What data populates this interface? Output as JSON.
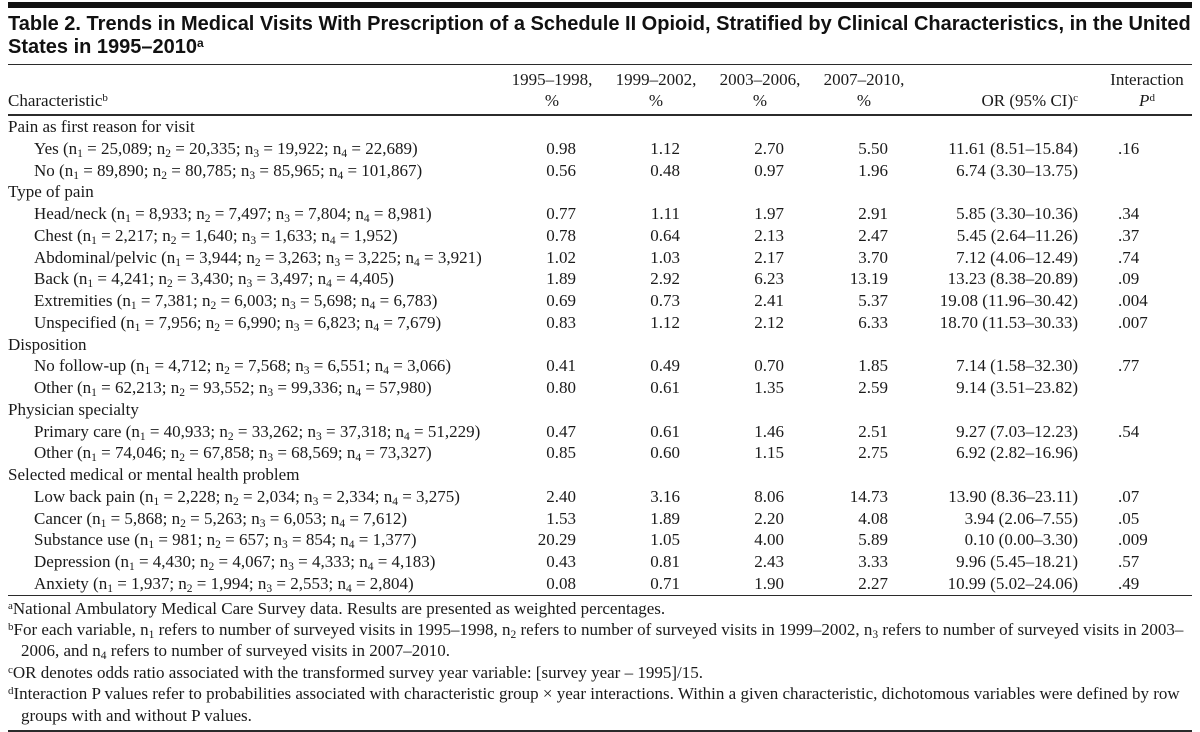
{
  "title": {
    "text": "Table 2. Trends in Medical Visits With Prescription of a Schedule II Opioid, Stratified by Clinical Characteristics, in the United States in 1995–2010",
    "sup": "a"
  },
  "table": {
    "columns": [
      {
        "label": "Characteristic",
        "sup": "b"
      },
      {
        "line1": "1995–1998,",
        "line2": "%"
      },
      {
        "line1": "1999–2002,",
        "line2": "%"
      },
      {
        "line1": "2003–2006,",
        "line2": "%"
      },
      {
        "line1": "2007–2010,",
        "line2": "%"
      },
      {
        "label": "OR (95% CI)",
        "sup": "c"
      },
      {
        "line1": "Interaction",
        "line2": "P",
        "sup": "d"
      }
    ],
    "rows": [
      {
        "type": "group",
        "label": "Pain as first reason for visit"
      },
      {
        "type": "item",
        "label": "Yes (n₁ = 25,089; n₂ = 20,335; n₃ = 19,922; n₄ = 22,689)",
        "values": [
          "0.98",
          "1.12",
          "2.70",
          "5.50"
        ],
        "or": "11.61 (8.51–15.84)",
        "p": ".16"
      },
      {
        "type": "item",
        "label": "No (n₁ = 89,890; n₂ = 80,785; n₃ = 85,965; n₄ = 101,867)",
        "values": [
          "0.56",
          "0.48",
          "0.97",
          "1.96"
        ],
        "or": "6.74 (3.30–13.75)",
        "p": ""
      },
      {
        "type": "group",
        "label": "Type of pain"
      },
      {
        "type": "item",
        "label": "Head/neck (n₁ = 8,933; n₂ = 7,497; n₃ = 7,804; n₄ = 8,981)",
        "values": [
          "0.77",
          "1.11",
          "1.97",
          "2.91"
        ],
        "or": "5.85 (3.30–10.36)",
        "p": ".34"
      },
      {
        "type": "item",
        "label": "Chest (n₁ = 2,217; n₂ = 1,640; n₃ = 1,633; n₄ = 1,952)",
        "values": [
          "0.78",
          "0.64",
          "2.13",
          "2.47"
        ],
        "or": "5.45 (2.64–11.26)",
        "p": ".37"
      },
      {
        "type": "item",
        "label": "Abdominal/pelvic (n₁ = 3,944; n₂ = 3,263; n₃ = 3,225; n₄ = 3,921)",
        "values": [
          "1.02",
          "1.03",
          "2.17",
          "3.70"
        ],
        "or": "7.12 (4.06–12.49)",
        "p": ".74"
      },
      {
        "type": "item",
        "label": "Back (n₁ = 4,241; n₂ = 3,430; n₃ = 3,497; n₄ = 4,405)",
        "values": [
          "1.89",
          "2.92",
          "6.23",
          "13.19"
        ],
        "or": "13.23 (8.38–20.89)",
        "p": ".09"
      },
      {
        "type": "item",
        "label": "Extremities (n₁ = 7,381; n₂ = 6,003; n₃ = 5,698; n₄ = 6,783)",
        "values": [
          "0.69",
          "0.73",
          "2.41",
          "5.37"
        ],
        "or": "19.08 (11.96–30.42)",
        "p": ".004"
      },
      {
        "type": "item",
        "label": "Unspecified (n₁ = 7,956; n₂ = 6,990; n₃ = 6,823; n₄ = 7,679)",
        "values": [
          "0.83",
          "1.12",
          "2.12",
          "6.33"
        ],
        "or": "18.70 (11.53–30.33)",
        "p": ".007"
      },
      {
        "type": "group",
        "label": "Disposition"
      },
      {
        "type": "item",
        "label": "No follow-up (n₁ = 4,712; n₂ = 7,568; n₃ = 6,551; n₄ = 3,066)",
        "values": [
          "0.41",
          "0.49",
          "0.70",
          "1.85"
        ],
        "or": "7.14 (1.58–32.30)",
        "p": ".77"
      },
      {
        "type": "item",
        "label": "Other (n₁ = 62,213; n₂ = 93,552; n₃ = 99,336; n₄ = 57,980)",
        "values": [
          "0.80",
          "0.61",
          "1.35",
          "2.59"
        ],
        "or": "9.14 (3.51–23.82)",
        "p": ""
      },
      {
        "type": "group",
        "label": "Physician specialty"
      },
      {
        "type": "item",
        "label": "Primary care (n₁ = 40,933; n₂ = 33,262; n₃ = 37,318; n₄ = 51,229)",
        "values": [
          "0.47",
          "0.61",
          "1.46",
          "2.51"
        ],
        "or": "9.27 (7.03–12.23)",
        "p": ".54"
      },
      {
        "type": "item",
        "label": "Other (n₁ = 74,046; n₂ = 67,858; n₃ = 68,569; n₄ = 73,327)",
        "values": [
          "0.85",
          "0.60",
          "1.15",
          "2.75"
        ],
        "or": "6.92 (2.82–16.96)",
        "p": ""
      },
      {
        "type": "group",
        "label": "Selected medical or mental health problem"
      },
      {
        "type": "item",
        "label": "Low back pain (n₁ = 2,228; n₂ = 2,034; n₃ = 2,334; n₄ = 3,275)",
        "values": [
          "2.40",
          "3.16",
          "8.06",
          "14.73"
        ],
        "or": "13.90 (8.36–23.11)",
        "p": ".07"
      },
      {
        "type": "item",
        "label": "Cancer (n₁ = 5,868; n₂ = 5,263; n₃ = 6,053; n₄ = 7,612)",
        "values": [
          "1.53",
          "1.89",
          "2.20",
          "4.08"
        ],
        "or": "3.94 (2.06–7.55)",
        "p": ".05"
      },
      {
        "type": "item",
        "label": "Substance use (n₁ = 981; n₂ = 657; n₃ = 854; n₄ = 1,377)",
        "values": [
          "20.29",
          "1.05",
          "4.00",
          "5.89"
        ],
        "or": "0.10 (0.00–3.30)",
        "p": ".009"
      },
      {
        "type": "item",
        "label": "Depression (n₁ = 4,430; n₂ = 4,067; n₃ = 4,333; n₄ = 4,183)",
        "values": [
          "0.43",
          "0.81",
          "2.43",
          "3.33"
        ],
        "or": "9.96 (5.45–18.21)",
        "p": ".57"
      },
      {
        "type": "item",
        "label": "Anxiety (n₁ = 1,937; n₂ = 1,994; n₃ = 2,553; n₄ = 2,804)",
        "values": [
          "0.08",
          "0.71",
          "1.90",
          "2.27"
        ],
        "or": "10.99 (5.02–24.06)",
        "p": ".49"
      }
    ]
  },
  "footnotes": [
    {
      "marker": "a",
      "text": "National Ambulatory Medical Care Survey data. Results are presented as weighted percentages."
    },
    {
      "marker": "b",
      "text": "For each variable, n₁ refers to number of surveyed visits in 1995–1998, n₂ refers to number of surveyed visits in 1999–2002, n₃ refers to number of surveyed visits in 2003–2006, and n₄ refers to number of surveyed visits in 2007–2010."
    },
    {
      "marker": "c",
      "text": "OR denotes odds ratio associated with the transformed survey year variable: [survey year – 1995]/15."
    },
    {
      "marker": "d",
      "text": "Interaction P values refer to probabilities associated with characteristic group × year interactions. Within a given characteristic, dichotomous variables were defined by row groups with and without P values."
    }
  ]
}
